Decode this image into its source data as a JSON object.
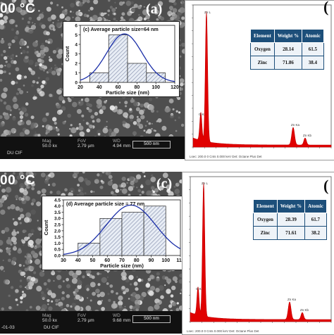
{
  "panels": {
    "top_sem": {
      "temp": "00 °C",
      "letter": "(a)",
      "infobar": [
        {
          "head": "Mag",
          "value": "50.0 kx"
        },
        {
          "head": "FoV",
          "value": "2.79 µm"
        },
        {
          "head": "WD",
          "value": "4.94 mm"
        }
      ],
      "left_text": "DU CIF",
      "scale": "500 nm"
    },
    "bottom_sem": {
      "temp": "00 °C",
      "letter": "(c)",
      "infobar": [
        {
          "head": "Mag",
          "value": "50.0 kx"
        },
        {
          "head": "FoV",
          "value": "2.79 µm"
        },
        {
          "head": "WD",
          "value": "9.68 mm"
        }
      ],
      "left_text": "DU CIF",
      "date_text": "-01-03",
      "scale": "500 nm"
    },
    "top_eds": {
      "letter": "(",
      "table": {
        "headers": [
          "Element",
          "Weight %",
          "Atomic"
        ],
        "rows": [
          [
            "Oxygen",
            "28.14",
            "61.5"
          ],
          [
            "Zinc",
            "71.86",
            "38.4"
          ]
        ]
      },
      "labels": {
        "znl": "Zn L",
        "ok": "O K",
        "znka": "Zn Ka",
        "znkb": "Zn Kb"
      },
      "footer": "Lsec: 200.0 0 Cnts 0.000 keV Det: Octane Plus Det"
    },
    "bottom_eds": {
      "letter": "(",
      "table": {
        "headers": [
          "Element",
          "Weight %",
          "Atomic"
        ],
        "rows": [
          [
            "Oxygen",
            "28.39",
            "61.7"
          ],
          [
            "Zinc",
            "71.61",
            "38.2"
          ]
        ]
      },
      "labels": {
        "znl": "Zn L",
        "ok": "O K",
        "znka": "Zn Ka",
        "znkb": "Zn Kb"
      },
      "footer": "Lsec: 200.0 0 Cnts 0.000 keV Det: Octane Plus Det"
    }
  },
  "chart_data": [
    {
      "type": "bar",
      "title": "(c) Average particle size=64 nm",
      "xlabel": "Particle size (nm)",
      "ylabel": "Count",
      "bins": [
        [
          30,
          50
        ],
        [
          50,
          70
        ],
        [
          70,
          90
        ],
        [
          90,
          110
        ]
      ],
      "values": [
        1,
        5,
        2,
        1
      ],
      "xticks": [
        "20",
        "40",
        "60",
        "80",
        "100",
        "120"
      ],
      "xlim": [
        20,
        120
      ],
      "yticks": [
        "0",
        "1",
        "2",
        "3",
        "4",
        "5",
        "6"
      ],
      "ylim": [
        0,
        6
      ],
      "fit": "gaussian"
    },
    {
      "type": "bar",
      "title": "(d) Average particle size = 77 nm",
      "xlabel": "Particle size (nm)",
      "ylabel": "Count",
      "bins": [
        [
          40,
          55
        ],
        [
          55,
          70
        ],
        [
          70,
          85
        ],
        [
          85,
          100
        ]
      ],
      "values": [
        1,
        3,
        3.5,
        4
      ],
      "xticks": [
        "30",
        "40",
        "50",
        "60",
        "70",
        "80",
        "90",
        "100",
        "110"
      ],
      "xlim": [
        30,
        110
      ],
      "yticks": [
        "0.0",
        "0.5",
        "1.0",
        "1.5",
        "2.0",
        "2.5",
        "3.0",
        "3.5",
        "4.0",
        "4.5"
      ],
      "ylim": [
        0,
        4.5
      ],
      "fit": "gaussian"
    }
  ]
}
